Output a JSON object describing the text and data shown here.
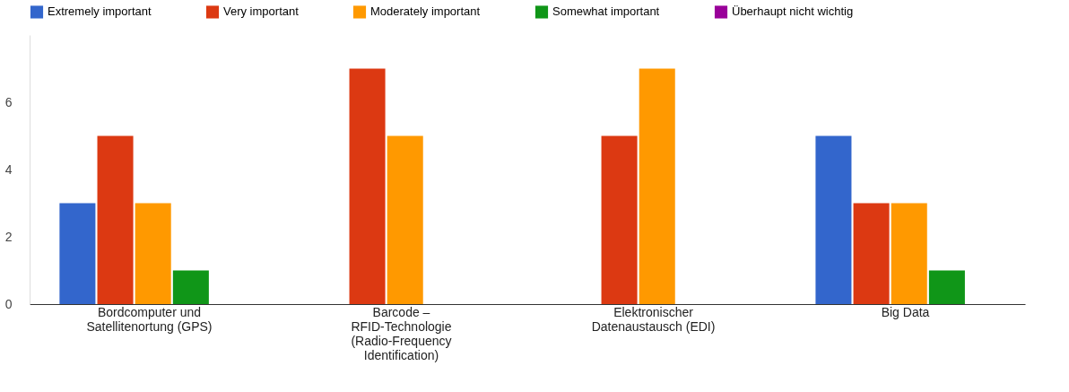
{
  "chart_data": {
    "type": "bar",
    "categories": [
      "Bordcomputer und Satellitenortung (GPS)",
      "Barcode – RFID-Technologie (Radio-Frequency Identification)",
      "Elektronischer Datenaustausch (EDI)",
      "Big Data"
    ],
    "series": [
      {
        "name": "Extremely important",
        "color": "#3366cc",
        "values": [
          3,
          0,
          0,
          5
        ]
      },
      {
        "name": "Very important",
        "color": "#dc3912",
        "values": [
          5,
          7,
          5,
          3
        ]
      },
      {
        "name": "Moderately important",
        "color": "#ff9900",
        "values": [
          3,
          5,
          7,
          3
        ]
      },
      {
        "name": "Somewhat important",
        "color": "#109618",
        "values": [
          1,
          0,
          0,
          1
        ]
      },
      {
        "name": "Überhaupt nicht wichtig",
        "color": "#990099",
        "values": [
          0,
          0,
          0,
          0
        ]
      }
    ],
    "ylim": [
      0,
      8
    ],
    "yticks": [
      0,
      2,
      4,
      6
    ],
    "grid": false,
    "legend": "top"
  }
}
